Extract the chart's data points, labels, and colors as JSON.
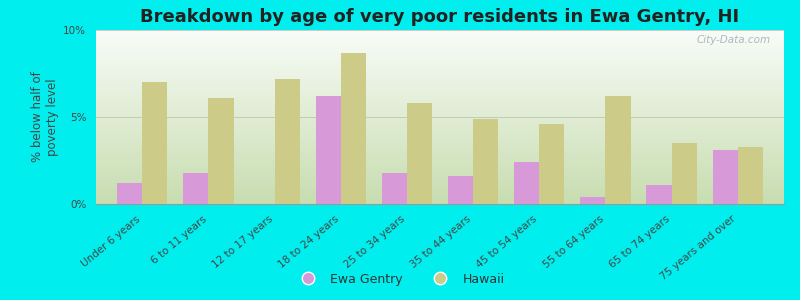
{
  "title": "Breakdown by age of very poor residents in Ewa Gentry, HI",
  "ylabel": "% below half of\npoverty level",
  "categories": [
    "Under 6 years",
    "6 to 11 years",
    "12 to 17 years",
    "18 to 24 years",
    "25 to 34 years",
    "35 to 44 years",
    "45 to 54 years",
    "55 to 64 years",
    "65 to 74 years",
    "75 years and over"
  ],
  "ewa_gentry": [
    1.2,
    1.8,
    0.0,
    6.2,
    1.8,
    1.6,
    2.4,
    0.4,
    1.1,
    3.1
  ],
  "hawaii": [
    7.0,
    6.1,
    7.2,
    8.7,
    5.8,
    4.9,
    4.6,
    6.2,
    3.5,
    3.3
  ],
  "ewa_color": "#d899d8",
  "hawaii_color": "#cccc88",
  "background_outer": "#00eeee",
  "gradient_bottom": "#c8ddb0",
  "gradient_top": "#f8f8f8",
  "ylim": [
    0,
    10
  ],
  "yticks": [
    0,
    5,
    10
  ],
  "ytick_labels": [
    "0%",
    "5%",
    "10%"
  ],
  "bar_width": 0.38,
  "title_fontsize": 13,
  "axis_label_fontsize": 8.5,
  "tick_fontsize": 7.5,
  "legend_fontsize": 9,
  "watermark": "City-Data.com"
}
